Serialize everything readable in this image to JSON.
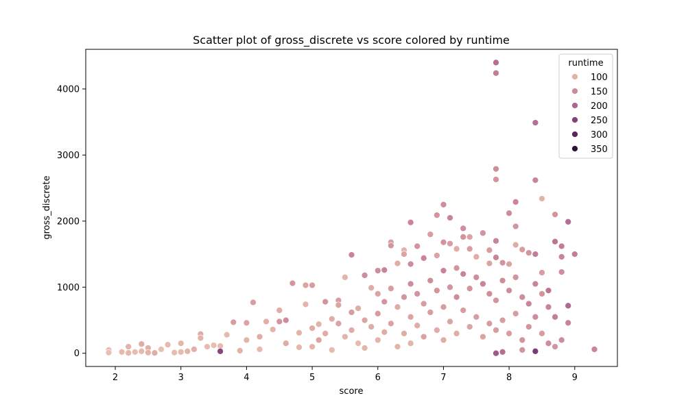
{
  "chart_data": {
    "type": "scatter",
    "title": "Scatter plot of gross_discrete vs score colored by runtime",
    "xlabel": "score",
    "ylabel": "gross_discrete",
    "xlim": [
      1.55,
      9.65
    ],
    "ylim": [
      -200,
      4600
    ],
    "xticks": [
      2,
      3,
      4,
      5,
      6,
      7,
      8,
      9
    ],
    "yticks": [
      0,
      1000,
      2000,
      3000,
      4000
    ],
    "grid": false,
    "legend": {
      "title": "runtime",
      "placement": "top-right",
      "entries": [
        {
          "label": "100",
          "color": "#e3b3a8"
        },
        {
          "label": "150",
          "color": "#cd8a99"
        },
        {
          "label": "200",
          "color": "#ad648d"
        },
        {
          "label": "250",
          "color": "#844279"
        },
        {
          "label": "300",
          "color": "#5a2660"
        },
        {
          "label": "350",
          "color": "#2d1339"
        }
      ]
    },
    "color_scale": {
      "variable": "runtime",
      "min": 60,
      "max": 370,
      "stops": [
        "#f1d2c1",
        "#e3b3a8",
        "#cd8a99",
        "#ad648d",
        "#844279",
        "#5a2660",
        "#2d1339"
      ]
    },
    "series": [
      {
        "points": [
          [
            1.9,
            50,
            95
          ],
          [
            1.9,
            10,
            90
          ],
          [
            2.1,
            20,
            100
          ],
          [
            2.2,
            100,
            110
          ],
          [
            2.2,
            5,
            105
          ],
          [
            2.3,
            20,
            95
          ],
          [
            2.4,
            140,
            120
          ],
          [
            2.4,
            30,
            100
          ],
          [
            2.5,
            80,
            115
          ],
          [
            2.5,
            10,
            110
          ],
          [
            2.6,
            5,
            120
          ],
          [
            2.7,
            60,
            90
          ],
          [
            2.8,
            130,
            100
          ],
          [
            2.9,
            10,
            95
          ],
          [
            3.0,
            150,
            105
          ],
          [
            3.0,
            20,
            100
          ],
          [
            3.1,
            30,
            110
          ],
          [
            3.2,
            60,
            115
          ],
          [
            3.3,
            290,
            120
          ],
          [
            3.3,
            230,
            110
          ],
          [
            3.4,
            100,
            100
          ],
          [
            3.5,
            120,
            95
          ],
          [
            3.6,
            110,
            100
          ],
          [
            3.7,
            280,
            100
          ],
          [
            3.8,
            470,
            140
          ],
          [
            3.9,
            40,
            110
          ],
          [
            4.0,
            460,
            130
          ],
          [
            4.1,
            770,
            140
          ],
          [
            4.2,
            250,
            120
          ],
          [
            4.3,
            480,
            115
          ],
          [
            4.4,
            360,
            110
          ],
          [
            4.5,
            650,
            120
          ],
          [
            4.5,
            480,
            150
          ],
          [
            4.6,
            500,
            160
          ],
          [
            4.7,
            1060,
            150
          ],
          [
            4.8,
            310,
            110
          ],
          [
            4.9,
            740,
            110
          ],
          [
            4.9,
            1030,
            130
          ],
          [
            5.0,
            1030,
            140
          ],
          [
            5.1,
            440,
            110
          ],
          [
            5.2,
            780,
            150
          ],
          [
            5.3,
            520,
            120
          ],
          [
            5.4,
            800,
            140
          ],
          [
            5.4,
            730,
            130
          ],
          [
            5.5,
            1150,
            110
          ],
          [
            5.6,
            1490,
            170
          ],
          [
            5.7,
            680,
            120
          ],
          [
            5.8,
            1180,
            160
          ],
          [
            5.9,
            990,
            120
          ],
          [
            6.0,
            1250,
            160
          ],
          [
            6.0,
            900,
            130
          ],
          [
            6.1,
            1260,
            170
          ],
          [
            6.2,
            1680,
            140
          ],
          [
            6.2,
            1630,
            150
          ],
          [
            6.3,
            1360,
            120
          ],
          [
            6.4,
            1560,
            110
          ],
          [
            6.4,
            1500,
            130
          ],
          [
            6.5,
            1980,
            170
          ],
          [
            6.5,
            1350,
            160
          ],
          [
            6.6,
            1620,
            150
          ],
          [
            6.7,
            1440,
            170
          ],
          [
            6.8,
            1800,
            140
          ],
          [
            6.9,
            2090,
            150
          ],
          [
            6.9,
            1480,
            130
          ],
          [
            7.0,
            2250,
            160
          ],
          [
            7.0,
            1680,
            150
          ],
          [
            7.1,
            2050,
            170
          ],
          [
            7.1,
            1660,
            140
          ],
          [
            7.2,
            1580,
            120
          ],
          [
            7.2,
            1290,
            150
          ],
          [
            7.3,
            1890,
            160
          ],
          [
            7.3,
            1760,
            150
          ],
          [
            7.4,
            1760,
            130
          ],
          [
            7.4,
            1580,
            140
          ],
          [
            7.5,
            1460,
            120
          ],
          [
            7.6,
            1820,
            150
          ],
          [
            7.7,
            1560,
            140
          ],
          [
            7.7,
            1360,
            130
          ],
          [
            7.8,
            4400,
            200
          ],
          [
            7.8,
            4240,
            180
          ],
          [
            7.8,
            2790,
            160
          ],
          [
            7.8,
            2630,
            150
          ],
          [
            7.8,
            1700,
            170
          ],
          [
            7.8,
            0,
            230
          ],
          [
            7.9,
            1370,
            150
          ],
          [
            8.0,
            2120,
            160
          ],
          [
            8.0,
            1350,
            130
          ],
          [
            8.1,
            2290,
            170
          ],
          [
            8.1,
            1920,
            150
          ],
          [
            8.1,
            1640,
            120
          ],
          [
            8.2,
            1570,
            140
          ],
          [
            8.3,
            1520,
            150
          ],
          [
            8.4,
            3490,
            200
          ],
          [
            8.4,
            2620,
            170
          ],
          [
            8.4,
            1500,
            180
          ],
          [
            8.4,
            30,
            280
          ],
          [
            8.5,
            2340,
            110
          ],
          [
            8.5,
            1220,
            140
          ],
          [
            8.6,
            950,
            190
          ],
          [
            8.7,
            2100,
            150
          ],
          [
            8.7,
            1690,
            190
          ],
          [
            8.8,
            1620,
            180
          ],
          [
            8.8,
            1460,
            170
          ],
          [
            8.8,
            1230,
            160
          ],
          [
            8.9,
            1990,
            200
          ],
          [
            8.9,
            720,
            210
          ],
          [
            8.9,
            460,
            170
          ],
          [
            9.0,
            1500,
            180
          ],
          [
            9.3,
            60,
            170
          ],
          [
            3.6,
            30,
            260
          ],
          [
            4.0,
            200,
            110
          ],
          [
            4.2,
            60,
            100
          ],
          [
            4.6,
            150,
            120
          ],
          [
            4.8,
            90,
            105
          ],
          [
            5.0,
            380,
            120
          ],
          [
            5.0,
            100,
            110
          ],
          [
            5.1,
            200,
            130
          ],
          [
            5.2,
            300,
            120
          ],
          [
            5.3,
            50,
            100
          ],
          [
            5.4,
            450,
            130
          ],
          [
            5.5,
            250,
            110
          ],
          [
            5.6,
            620,
            140
          ],
          [
            5.6,
            350,
            120
          ],
          [
            5.7,
            150,
            100
          ],
          [
            5.8,
            500,
            130
          ],
          [
            5.8,
            80,
            110
          ],
          [
            5.9,
            400,
            120
          ],
          [
            6.0,
            600,
            140
          ],
          [
            6.0,
            200,
            110
          ],
          [
            6.1,
            780,
            150
          ],
          [
            6.1,
            320,
            120
          ],
          [
            6.2,
            980,
            140
          ],
          [
            6.2,
            450,
            130
          ],
          [
            6.3,
            700,
            120
          ],
          [
            6.3,
            100,
            110
          ],
          [
            6.4,
            850,
            150
          ],
          [
            6.4,
            300,
            120
          ],
          [
            6.5,
            1050,
            160
          ],
          [
            6.5,
            550,
            130
          ],
          [
            6.5,
            150,
            110
          ],
          [
            6.6,
            900,
            150
          ],
          [
            6.6,
            420,
            120
          ],
          [
            6.7,
            750,
            140
          ],
          [
            6.7,
            250,
            130
          ],
          [
            6.8,
            1100,
            160
          ],
          [
            6.8,
            620,
            140
          ],
          [
            6.9,
            950,
            150
          ],
          [
            6.9,
            350,
            120
          ],
          [
            7.0,
            1250,
            170
          ],
          [
            7.0,
            700,
            140
          ],
          [
            7.0,
            200,
            120
          ],
          [
            7.1,
            1000,
            150
          ],
          [
            7.1,
            480,
            130
          ],
          [
            7.2,
            850,
            160
          ],
          [
            7.2,
            300,
            120
          ],
          [
            7.3,
            1200,
            170
          ],
          [
            7.3,
            650,
            140
          ],
          [
            7.4,
            980,
            150
          ],
          [
            7.4,
            400,
            130
          ],
          [
            7.5,
            1150,
            160
          ],
          [
            7.5,
            550,
            140
          ],
          [
            7.6,
            1050,
            170
          ],
          [
            7.6,
            250,
            130
          ],
          [
            7.7,
            900,
            160
          ],
          [
            7.7,
            450,
            140
          ],
          [
            7.8,
            1450,
            170
          ],
          [
            7.8,
            800,
            150
          ],
          [
            7.8,
            350,
            140
          ],
          [
            7.9,
            1100,
            160
          ],
          [
            7.9,
            500,
            140
          ],
          [
            8.0,
            950,
            160
          ],
          [
            8.0,
            300,
            140
          ],
          [
            8.1,
            1150,
            150
          ],
          [
            8.1,
            600,
            140
          ],
          [
            8.2,
            850,
            160
          ],
          [
            8.2,
            200,
            150
          ],
          [
            8.3,
            750,
            170
          ],
          [
            8.3,
            400,
            150
          ],
          [
            8.4,
            1050,
            170
          ],
          [
            8.4,
            550,
            160
          ],
          [
            8.5,
            900,
            150
          ],
          [
            8.5,
            300,
            140
          ],
          [
            8.6,
            700,
            170
          ],
          [
            8.6,
            150,
            160
          ],
          [
            8.7,
            550,
            180
          ],
          [
            8.7,
            100,
            150
          ],
          [
            8.8,
            200,
            160
          ],
          [
            8.2,
            50,
            150
          ],
          [
            7.9,
            20,
            200
          ]
        ]
      }
    ]
  }
}
